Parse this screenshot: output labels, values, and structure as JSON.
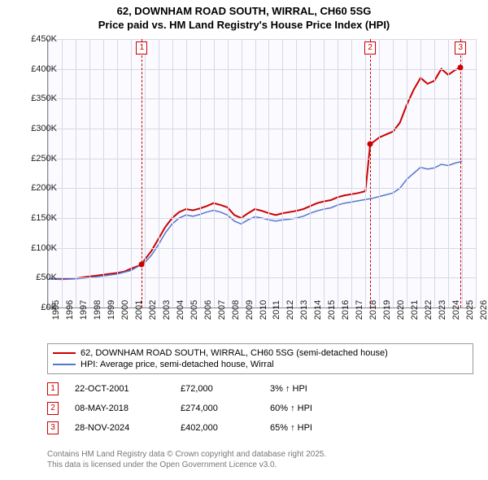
{
  "title_line1": "62, DOWNHAM ROAD SOUTH, WIRRAL, CH60 5SG",
  "title_line2": "Price paid vs. HM Land Registry's House Price Index (HPI)",
  "chart": {
    "type": "line",
    "background_color": "#fafaff",
    "grid_color": "#d8d8e8",
    "axis_color": "#888888",
    "x_years": [
      1995,
      1996,
      1997,
      1998,
      1999,
      2000,
      2001,
      2002,
      2003,
      2004,
      2005,
      2006,
      2007,
      2008,
      2009,
      2010,
      2011,
      2012,
      2013,
      2014,
      2015,
      2016,
      2017,
      2018,
      2019,
      2020,
      2021,
      2022,
      2023,
      2024,
      2025,
      2026
    ],
    "y_min": 0,
    "y_max": 450000,
    "y_step": 50000,
    "y_labels": [
      "£0K",
      "£50K",
      "£100K",
      "£150K",
      "£200K",
      "£250K",
      "£300K",
      "£350K",
      "£400K",
      "£450K"
    ],
    "series": [
      {
        "name": "price_paid",
        "label": "62, DOWNHAM ROAD SOUTH, WIRRAL, CH60 5SG (semi-detached house)",
        "color": "#cc0000",
        "line_width": 2,
        "points": [
          [
            1995,
            49000
          ],
          [
            1996,
            48000
          ],
          [
            1997,
            49000
          ],
          [
            1998,
            52000
          ],
          [
            1999,
            55000
          ],
          [
            2000,
            58000
          ],
          [
            2000.5,
            60000
          ],
          [
            2001,
            65000
          ],
          [
            2001.8,
            72000
          ],
          [
            2002,
            80000
          ],
          [
            2002.5,
            95000
          ],
          [
            2003,
            115000
          ],
          [
            2003.5,
            135000
          ],
          [
            2004,
            150000
          ],
          [
            2004.5,
            160000
          ],
          [
            2005,
            165000
          ],
          [
            2005.5,
            163000
          ],
          [
            2006,
            166000
          ],
          [
            2006.5,
            170000
          ],
          [
            2007,
            175000
          ],
          [
            2007.5,
            172000
          ],
          [
            2008,
            168000
          ],
          [
            2008.5,
            155000
          ],
          [
            2009,
            150000
          ],
          [
            2009.5,
            158000
          ],
          [
            2010,
            165000
          ],
          [
            2010.5,
            162000
          ],
          [
            2011,
            158000
          ],
          [
            2011.5,
            155000
          ],
          [
            2012,
            158000
          ],
          [
            2012.5,
            160000
          ],
          [
            2013,
            162000
          ],
          [
            2013.5,
            165000
          ],
          [
            2014,
            170000
          ],
          [
            2014.5,
            175000
          ],
          [
            2015,
            178000
          ],
          [
            2015.5,
            180000
          ],
          [
            2016,
            185000
          ],
          [
            2016.5,
            188000
          ],
          [
            2017,
            190000
          ],
          [
            2017.5,
            192000
          ],
          [
            2018,
            195000
          ],
          [
            2018.35,
            274000
          ],
          [
            2018.5,
            276000
          ],
          [
            2019,
            285000
          ],
          [
            2019.5,
            290000
          ],
          [
            2020,
            295000
          ],
          [
            2020.5,
            310000
          ],
          [
            2021,
            340000
          ],
          [
            2021.5,
            365000
          ],
          [
            2022,
            385000
          ],
          [
            2022.5,
            375000
          ],
          [
            2023,
            380000
          ],
          [
            2023.5,
            400000
          ],
          [
            2024,
            390000
          ],
          [
            2024.5,
            398000
          ],
          [
            2024.9,
            402000
          ]
        ]
      },
      {
        "name": "hpi",
        "label": "HPI: Average price, semi-detached house, Wirral",
        "color": "#5577cc",
        "line_width": 1.5,
        "points": [
          [
            1995,
            48000
          ],
          [
            1996,
            47000
          ],
          [
            1997,
            48000
          ],
          [
            1998,
            50000
          ],
          [
            1999,
            53000
          ],
          [
            2000,
            56000
          ],
          [
            2001,
            62000
          ],
          [
            2002,
            75000
          ],
          [
            2002.5,
            88000
          ],
          [
            2003,
            105000
          ],
          [
            2003.5,
            125000
          ],
          [
            2004,
            140000
          ],
          [
            2004.5,
            150000
          ],
          [
            2005,
            155000
          ],
          [
            2005.5,
            153000
          ],
          [
            2006,
            156000
          ],
          [
            2006.5,
            160000
          ],
          [
            2007,
            163000
          ],
          [
            2007.5,
            160000
          ],
          [
            2008,
            155000
          ],
          [
            2008.5,
            145000
          ],
          [
            2009,
            140000
          ],
          [
            2009.5,
            147000
          ],
          [
            2010,
            152000
          ],
          [
            2010.5,
            150000
          ],
          [
            2011,
            147000
          ],
          [
            2011.5,
            145000
          ],
          [
            2012,
            147000
          ],
          [
            2012.5,
            148000
          ],
          [
            2013,
            150000
          ],
          [
            2013.5,
            153000
          ],
          [
            2014,
            158000
          ],
          [
            2014.5,
            162000
          ],
          [
            2015,
            165000
          ],
          [
            2015.5,
            167000
          ],
          [
            2016,
            172000
          ],
          [
            2016.5,
            175000
          ],
          [
            2017,
            177000
          ],
          [
            2017.5,
            179000
          ],
          [
            2018,
            181000
          ],
          [
            2018.5,
            183000
          ],
          [
            2019,
            186000
          ],
          [
            2019.5,
            189000
          ],
          [
            2020,
            192000
          ],
          [
            2020.5,
            200000
          ],
          [
            2021,
            215000
          ],
          [
            2021.5,
            225000
          ],
          [
            2022,
            235000
          ],
          [
            2022.5,
            232000
          ],
          [
            2023,
            234000
          ],
          [
            2023.5,
            240000
          ],
          [
            2024,
            238000
          ],
          [
            2024.5,
            242000
          ],
          [
            2025,
            245000
          ]
        ]
      }
    ],
    "markers": [
      {
        "n": "1",
        "year": 2001.8,
        "date": "22-OCT-2001",
        "price": "£72,000",
        "hpi": "3% ↑ HPI",
        "dot_value": 72000
      },
      {
        "n": "2",
        "year": 2018.35,
        "date": "08-MAY-2018",
        "price": "£274,000",
        "hpi": "60% ↑ HPI",
        "dot_value": 274000
      },
      {
        "n": "3",
        "year": 2024.9,
        "date": "28-NOV-2024",
        "price": "£402,000",
        "hpi": "65% ↑ HPI",
        "dot_value": 402000
      }
    ],
    "dot_color": "#cc0000",
    "marker_line_color": "#cc0000",
    "label_fontsize": 11
  },
  "attribution_line1": "Contains HM Land Registry data © Crown copyright and database right 2025.",
  "attribution_line2": "This data is licensed under the Open Government Licence v3.0."
}
